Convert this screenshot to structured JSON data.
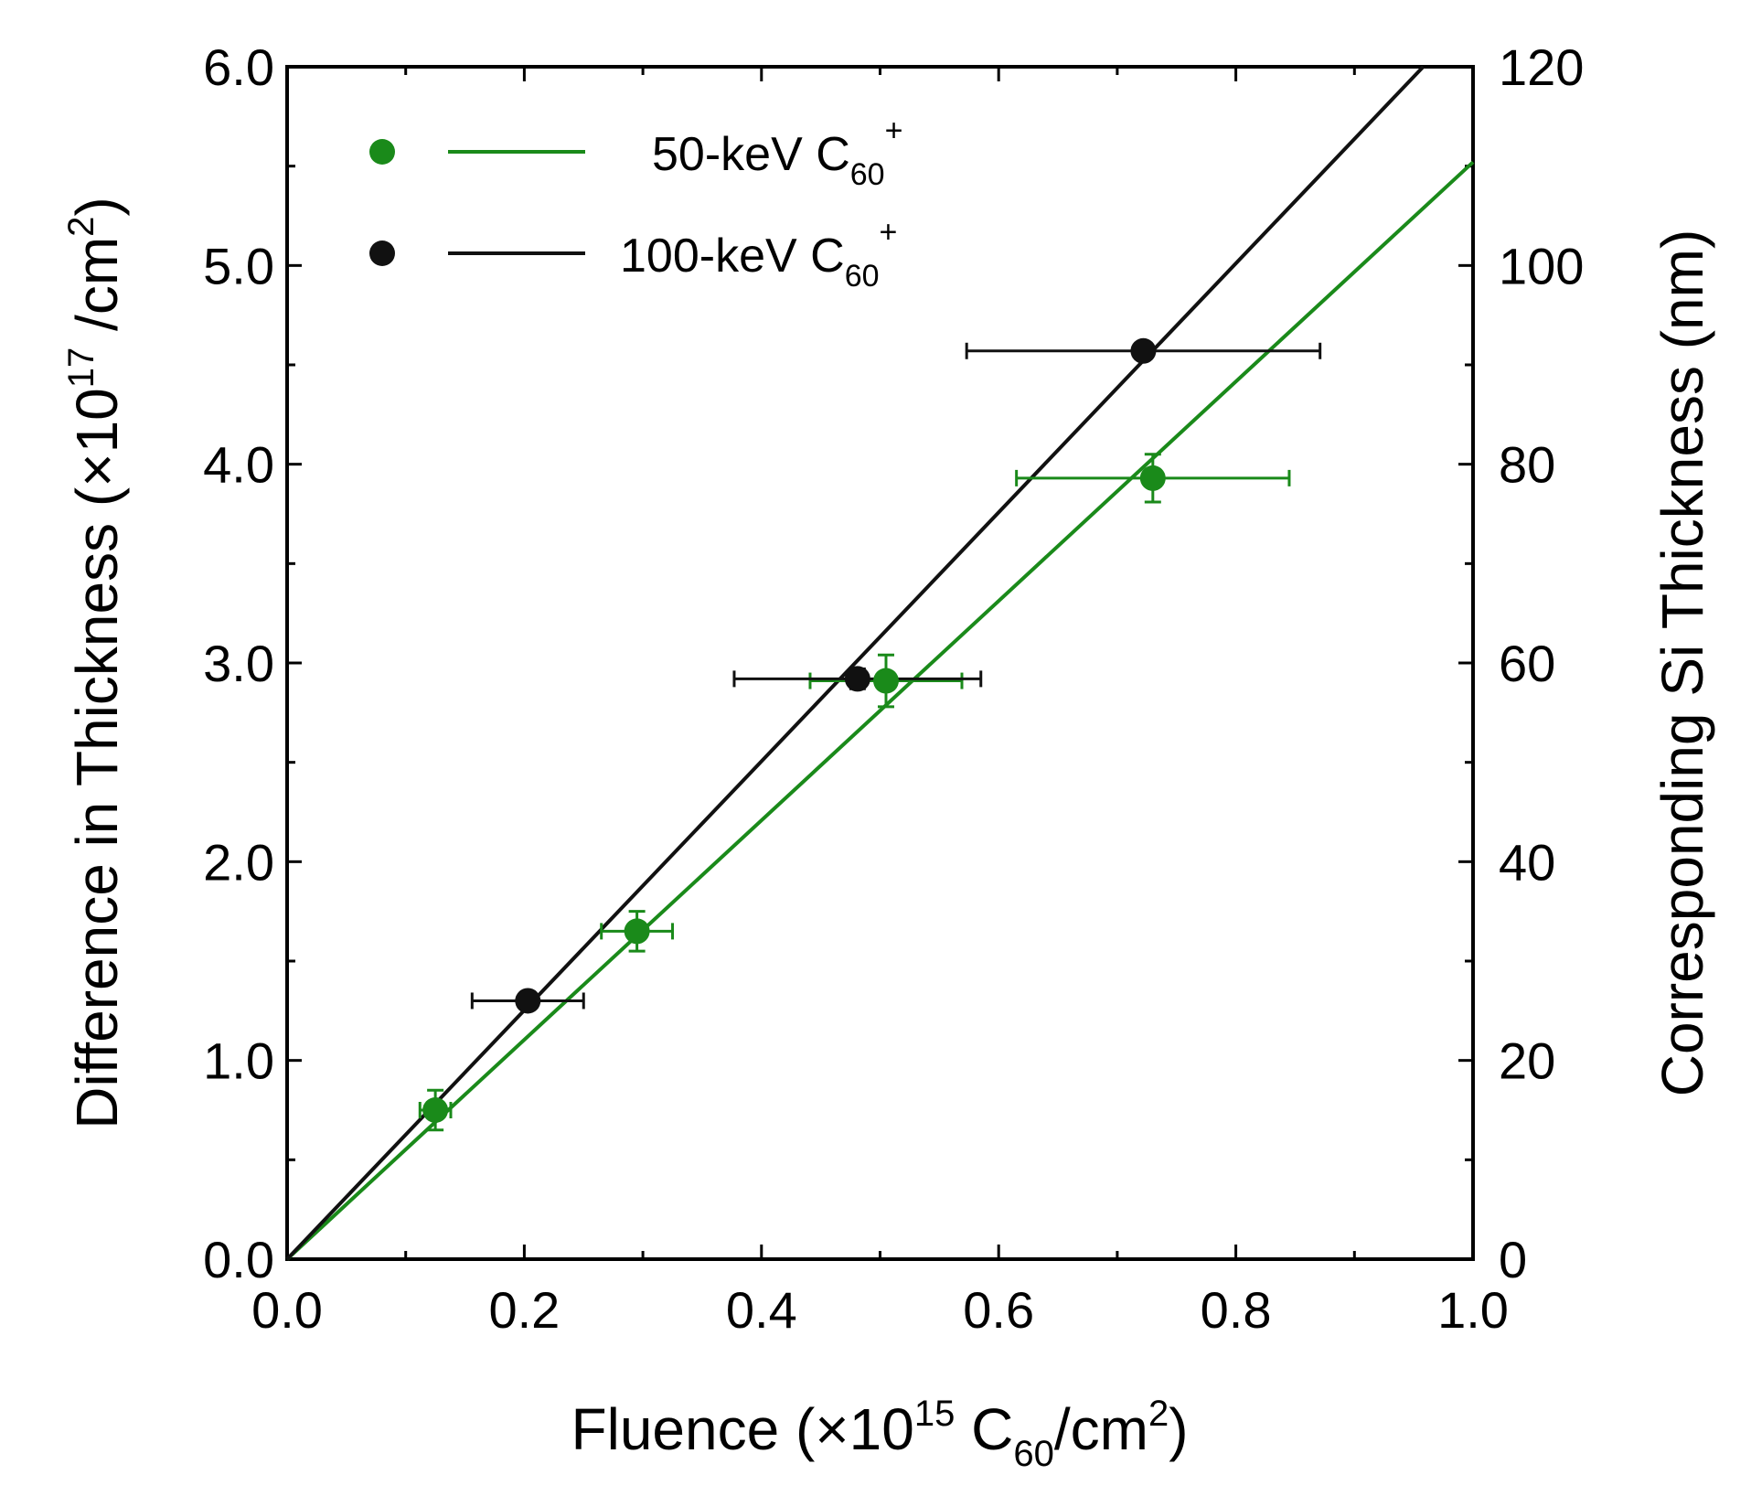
{
  "chart_data": {
    "type": "scatter",
    "xlabel": "Fluence (×10¹⁵ C₆₀/cm²)",
    "xlabel_parts": {
      "pre": "Fluence (×10",
      "sup": "15",
      "mid": " C",
      "sub": "60",
      "post": "/cm",
      "sup2": "2",
      "end": ")"
    },
    "ylabel": "Difference in Thickness (×10¹⁷ /cm²)",
    "ylabel_parts": {
      "pre": "Difference in Thickness (×10",
      "sup": "17",
      "mid": " /cm",
      "sup2": "2",
      "end": ")"
    },
    "y2label": "Corresponding Si Thickness (nm)",
    "xlim": [
      0,
      1.0
    ],
    "ylim": [
      0,
      6.0
    ],
    "y2lim": [
      0,
      120
    ],
    "x_ticks": [
      0.0,
      0.2,
      0.4,
      0.6,
      0.8,
      1.0
    ],
    "x_tick_labels": [
      "0.0",
      "0.2",
      "0.4",
      "0.6",
      "0.8",
      "1.0"
    ],
    "x_minor_ticks": [
      0.1,
      0.3,
      0.5,
      0.7,
      0.9
    ],
    "y_ticks": [
      0,
      1,
      2,
      3,
      4,
      5,
      6
    ],
    "y_tick_labels": [
      "0.0",
      "1.0",
      "2.0",
      "3.0",
      "4.0",
      "5.0",
      "6.0"
    ],
    "y_minor_ticks": [
      0.5,
      1.5,
      2.5,
      3.5,
      4.5,
      5.5
    ],
    "y2_ticks": [
      0,
      20,
      40,
      60,
      80,
      100,
      120
    ],
    "y2_tick_labels": [
      "0",
      "20",
      "40",
      "60",
      "80",
      "100",
      "120"
    ],
    "y2_minor_ticks": [
      10,
      30,
      50,
      70,
      90,
      110
    ],
    "legend_position": "top-left",
    "series": [
      {
        "name": "50-keV C60+",
        "label_parts": {
          "pre": "50-keV C",
          "sub": "60",
          "sup": "+"
        },
        "color": "#1a8a1a",
        "points": [
          {
            "x": 0.125,
            "y": 0.75,
            "xerr": 0.013,
            "yerr": 0.1
          },
          {
            "x": 0.295,
            "y": 1.65,
            "xerr": 0.03,
            "yerr": 0.1
          },
          {
            "x": 0.505,
            "y": 2.91,
            "xerr": 0.064,
            "yerr": 0.13
          },
          {
            "x": 0.73,
            "y": 3.93,
            "xerr": 0.115,
            "yerr": 0.12
          }
        ],
        "fit": {
          "x": [
            0,
            1.0
          ],
          "y": [
            0,
            5.52
          ]
        }
      },
      {
        "name": "100-keV C60+",
        "label_parts": {
          "pre": "100-keV C",
          "sub": "60",
          "sup": "+"
        },
        "color": "#111111",
        "points": [
          {
            "x": 0.203,
            "y": 1.3,
            "xerr": 0.047,
            "yerr": 0.04
          },
          {
            "x": 0.481,
            "y": 2.92,
            "xerr": 0.104,
            "yerr": 0.05
          },
          {
            "x": 0.722,
            "y": 4.57,
            "xerr": 0.149,
            "yerr": 0.04
          }
        ],
        "fit": {
          "x": [
            0,
            0.958
          ],
          "y": [
            0,
            6.0
          ]
        }
      }
    ]
  }
}
